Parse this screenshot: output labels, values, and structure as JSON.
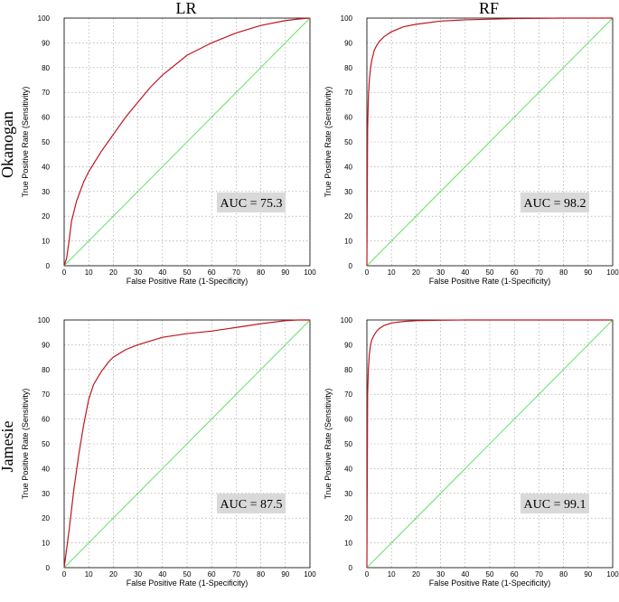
{
  "column_titles": [
    "LR",
    "RF"
  ],
  "row_titles": [
    "Okanogan",
    "Jamesie"
  ],
  "chart_data": [
    {
      "type": "line",
      "xlabel": "False Positive Rate (1-Specificity)",
      "ylabel": "True Positive Rate (Sensitivity)",
      "xlim": [
        0,
        100
      ],
      "ylim": [
        0,
        100
      ],
      "xticks": [
        "0",
        "10",
        "20",
        "30",
        "40",
        "50",
        "60",
        "70",
        "80",
        "90",
        "100"
      ],
      "yticks": [
        "0",
        "10",
        "20",
        "30",
        "40",
        "50",
        "60",
        "70",
        "80",
        "90",
        "100"
      ],
      "grid": true,
      "annotation": "AUC = 75.3",
      "series": [
        {
          "color": "#c0141e",
          "x": [
            0,
            1,
            2,
            3,
            5,
            8,
            10,
            15,
            20,
            25,
            30,
            35,
            40,
            50,
            60,
            70,
            80,
            90,
            95,
            100
          ],
          "y": [
            0,
            3,
            10,
            18,
            26,
            34,
            38,
            46,
            53,
            60,
            66,
            72,
            77,
            85,
            90,
            94,
            97,
            99,
            99.6,
            100
          ]
        },
        {
          "color": "#66e066",
          "x": [
            0,
            100
          ],
          "y": [
            0,
            100
          ]
        }
      ]
    },
    {
      "type": "line",
      "xlabel": "False Positive Rate (1-Specificity)",
      "ylabel": "True Positive Rate (Sensitivity)",
      "xlim": [
        0,
        100
      ],
      "ylim": [
        0,
        100
      ],
      "xticks": [
        "0",
        "10",
        "20",
        "30",
        "40",
        "50",
        "60",
        "70",
        "80",
        "90",
        "100"
      ],
      "yticks": [
        "0",
        "10",
        "20",
        "30",
        "40",
        "50",
        "60",
        "70",
        "80",
        "90",
        "100"
      ],
      "grid": true,
      "annotation": "AUC = 98.2",
      "series": [
        {
          "color": "#c0141e",
          "x": [
            0,
            0.3,
            0.6,
            1,
            1.5,
            2,
            3,
            4,
            5,
            7,
            10,
            15,
            20,
            30,
            40,
            60,
            80,
            100
          ],
          "y": [
            0,
            55,
            68,
            75,
            80,
            83,
            87,
            89,
            90.5,
            92.5,
            94.5,
            96.5,
            97.5,
            98.8,
            99.3,
            99.8,
            100,
            100
          ]
        },
        {
          "color": "#66e066",
          "x": [
            0,
            100
          ],
          "y": [
            0,
            100
          ]
        }
      ]
    },
    {
      "type": "line",
      "xlabel": "False Positive Rate (1-Specificity)",
      "ylabel": "True Positive Rate (Sensitivity)",
      "xlim": [
        0,
        100
      ],
      "ylim": [
        0,
        100
      ],
      "xticks": [
        "0",
        "10",
        "20",
        "30",
        "40",
        "50",
        "60",
        "70",
        "80",
        "90",
        "100"
      ],
      "yticks": [
        "0",
        "10",
        "20",
        "30",
        "40",
        "50",
        "60",
        "70",
        "80",
        "90",
        "100"
      ],
      "grid": true,
      "annotation": "AUC = 87.5",
      "series": [
        {
          "color": "#c0141e",
          "x": [
            0,
            2,
            4,
            6,
            8,
            10,
            12,
            15,
            18,
            20,
            25,
            30,
            40,
            50,
            60,
            70,
            80,
            90,
            95,
            100
          ],
          "y": [
            0,
            15,
            32,
            46,
            58,
            68,
            74,
            79,
            83,
            85,
            88,
            90,
            93,
            94.5,
            95.5,
            97,
            98.5,
            99.7,
            100,
            100
          ]
        },
        {
          "color": "#66e066",
          "x": [
            0,
            100
          ],
          "y": [
            0,
            100
          ]
        }
      ]
    },
    {
      "type": "line",
      "xlabel": "False Positive Rate (1-Specificity)",
      "ylabel": "True Positive Rate (Sensitivity)",
      "xlim": [
        0,
        100
      ],
      "ylim": [
        0,
        100
      ],
      "xticks": [
        "0",
        "10",
        "20",
        "30",
        "40",
        "50",
        "60",
        "70",
        "80",
        "90",
        "100"
      ],
      "yticks": [
        "0",
        "10",
        "20",
        "30",
        "40",
        "50",
        "60",
        "70",
        "80",
        "90",
        "100"
      ],
      "grid": true,
      "annotation": "AUC = 99.1",
      "series": [
        {
          "color": "#c0141e",
          "x": [
            0,
            0.3,
            0.6,
            1,
            1.5,
            2,
            3,
            4,
            5,
            7,
            10,
            15,
            20,
            30,
            40,
            60,
            100
          ],
          "y": [
            0,
            70,
            80,
            86,
            90,
            92,
            94,
            95.5,
            96.5,
            97.8,
            98.8,
            99.4,
            99.7,
            99.9,
            100,
            100,
            100
          ]
        },
        {
          "color": "#66e066",
          "x": [
            0,
            100
          ],
          "y": [
            0,
            100
          ]
        }
      ]
    }
  ]
}
